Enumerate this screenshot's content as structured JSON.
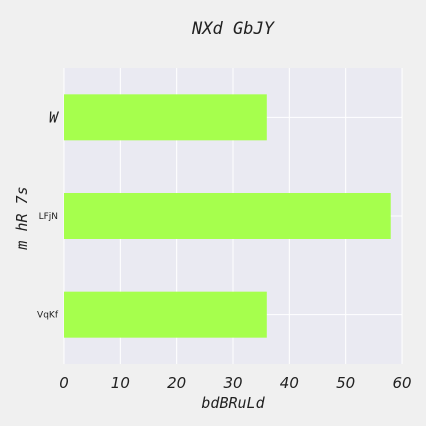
{
  "chart_data": {
    "type": "bar",
    "orientation": "horizontal",
    "title": "NXd GbJY",
    "xlabel": "bdBRuLd",
    "ylabel": "m hR 7s",
    "categories": [
      "W",
      "LFjN",
      "VqKf"
    ],
    "values": [
      36,
      58,
      36
    ],
    "xlim": [
      0,
      60
    ],
    "xticks": [
      "0",
      "10",
      "20",
      "30",
      "40",
      "50",
      "60"
    ],
    "grid": true,
    "legend": "none",
    "bar_color": "#a6ff4d",
    "plot_background": "#eaeaf2",
    "grid_color": "#ffffff"
  }
}
